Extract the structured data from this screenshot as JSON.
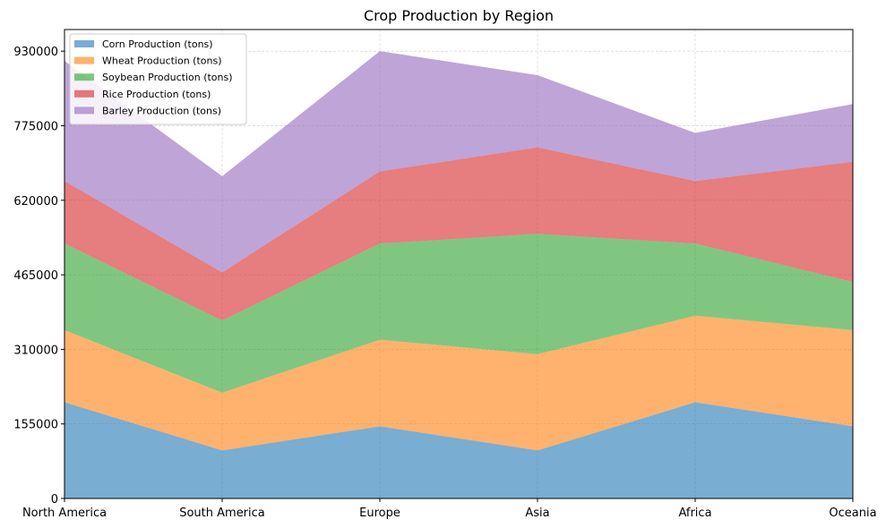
{
  "chart_data": {
    "type": "area",
    "stacked": true,
    "title": "Crop Production by Region",
    "xlabel": "",
    "ylabel": "",
    "categories": [
      "North America",
      "South America",
      "Europe",
      "Asia",
      "Africa",
      "Oceania"
    ],
    "y_ticks": [
      "0",
      "155000",
      "310000",
      "465000",
      "620000",
      "775000",
      "930000"
    ],
    "ylim": [
      0,
      975000
    ],
    "grid": true,
    "legend_position": "top-left",
    "series": [
      {
        "name": "Corn Production (tons)",
        "color": "#1f77b4",
        "values": [
          200000,
          100000,
          150000,
          100000,
          200000,
          150000
        ]
      },
      {
        "name": "Wheat Production (tons)",
        "color": "#ff7f0e",
        "values": [
          150000,
          120000,
          180000,
          200000,
          180000,
          200000
        ]
      },
      {
        "name": "Soybean Production (tons)",
        "color": "#2ca02c",
        "values": [
          180000,
          150000,
          200000,
          250000,
          150000,
          100000
        ]
      },
      {
        "name": "Rice Production (tons)",
        "color": "#d62728",
        "values": [
          130000,
          100000,
          150000,
          180000,
          130000,
          250000
        ]
      },
      {
        "name": "Barley Production (tons)",
        "color": "#9467bd",
        "values": [
          250000,
          200000,
          250000,
          150000,
          100000,
          120000
        ]
      }
    ]
  }
}
